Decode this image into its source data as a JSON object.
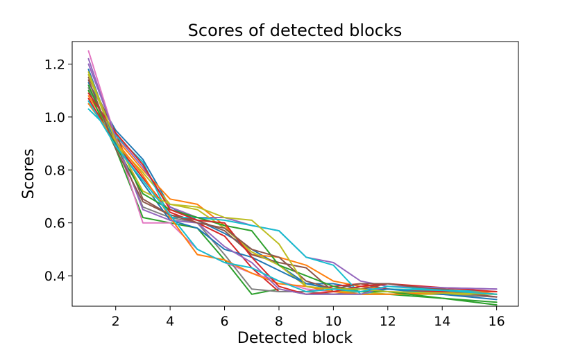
{
  "chart_data": {
    "type": "line",
    "title": "Scores of detected blocks",
    "xlabel": "Detected block",
    "ylabel": "Scores",
    "xlim": [
      0.4,
      16.8
    ],
    "ylim": [
      0.285,
      1.285
    ],
    "xticks": [
      2,
      4,
      6,
      8,
      10,
      12,
      14,
      16
    ],
    "xtick_labels": [
      "2",
      "4",
      "6",
      "8",
      "10",
      "12",
      "14",
      "16"
    ],
    "yticks": [
      0.4,
      0.6,
      0.8,
      1.0,
      1.2
    ],
    "ytick_labels": [
      "0.4",
      "0.6",
      "0.8",
      "1.0",
      "1.2"
    ],
    "grid": false,
    "legend": "none",
    "series": [
      {
        "color": "#1f77b4",
        "x": [
          1,
          2,
          3,
          4,
          5,
          6,
          7,
          8,
          9,
          10,
          11,
          12,
          16
        ],
        "y": [
          1.13,
          0.95,
          0.84,
          0.66,
          0.61,
          0.56,
          0.5,
          0.44,
          0.37,
          0.37,
          0.35,
          0.35,
          0.32
        ]
      },
      {
        "color": "#ff7f0e",
        "x": [
          1,
          2,
          3,
          4,
          5,
          6,
          7,
          8,
          9,
          10,
          11,
          12,
          16
        ],
        "y": [
          1.08,
          0.92,
          0.8,
          0.69,
          0.67,
          0.59,
          0.48,
          0.47,
          0.44,
          0.38,
          0.36,
          0.35,
          0.34
        ]
      },
      {
        "color": "#2ca02c",
        "x": [
          1,
          2,
          3,
          4,
          5,
          6,
          7,
          8,
          9,
          10,
          11,
          12,
          16
        ],
        "y": [
          1.1,
          0.88,
          0.62,
          0.6,
          0.58,
          0.46,
          0.33,
          0.35,
          0.33,
          0.33,
          0.33,
          0.33,
          0.3
        ]
      },
      {
        "color": "#d62728",
        "x": [
          1,
          2,
          3,
          4,
          5,
          6,
          7,
          8,
          9,
          10,
          11,
          12,
          16
        ],
        "y": [
          1.07,
          0.9,
          0.77,
          0.64,
          0.6,
          0.55,
          0.43,
          0.34,
          0.34,
          0.36,
          0.37,
          0.35,
          0.33
        ]
      },
      {
        "color": "#9467bd",
        "x": [
          1,
          2,
          3,
          4,
          5,
          6,
          7,
          8,
          9,
          10,
          11,
          12,
          16
        ],
        "y": [
          1.2,
          0.93,
          0.81,
          0.66,
          0.62,
          0.62,
          0.59,
          0.57,
          0.47,
          0.45,
          0.38,
          0.36,
          0.35
        ]
      },
      {
        "color": "#8c564b",
        "x": [
          1,
          2,
          3,
          4,
          5,
          6,
          7,
          8,
          9,
          10,
          11,
          12,
          16
        ],
        "y": [
          1.15,
          0.94,
          0.69,
          0.63,
          0.61,
          0.57,
          0.48,
          0.45,
          0.43,
          0.34,
          0.35,
          0.37,
          0.33
        ]
      },
      {
        "color": "#e377c2",
        "x": [
          1,
          2,
          3,
          4,
          5,
          6,
          7,
          8,
          9,
          10,
          11,
          12,
          16
        ],
        "y": [
          1.25,
          0.92,
          0.6,
          0.6,
          0.5,
          0.45,
          0.41,
          0.38,
          0.35,
          0.34,
          0.34,
          0.34,
          0.32
        ]
      },
      {
        "color": "#7f7f7f",
        "x": [
          1,
          2,
          3,
          4,
          5,
          6,
          7,
          8,
          9,
          10,
          11,
          12,
          16
        ],
        "y": [
          1.11,
          0.91,
          0.66,
          0.62,
          0.6,
          0.48,
          0.35,
          0.34,
          0.34,
          0.33,
          0.34,
          0.34,
          0.32
        ]
      },
      {
        "color": "#bcbd22",
        "x": [
          1,
          2,
          3,
          4,
          5,
          6,
          7,
          8,
          9,
          10,
          11,
          12,
          16
        ],
        "y": [
          1.16,
          0.9,
          0.79,
          0.67,
          0.65,
          0.58,
          0.49,
          0.44,
          0.36,
          0.34,
          0.34,
          0.33,
          0.33
        ]
      },
      {
        "color": "#17becf",
        "x": [
          1,
          2,
          3,
          4,
          5,
          6,
          7,
          8,
          9,
          10,
          11,
          12,
          16
        ],
        "y": [
          1.03,
          0.93,
          0.83,
          0.62,
          0.62,
          0.61,
          0.59,
          0.57,
          0.47,
          0.44,
          0.33,
          0.35,
          0.34
        ]
      },
      {
        "color": "#1f77b4",
        "x": [
          1,
          2,
          3,
          4,
          5,
          6,
          7,
          8,
          9,
          10,
          11,
          12,
          16
        ],
        "y": [
          1.18,
          0.9,
          0.75,
          0.61,
          0.58,
          0.5,
          0.47,
          0.42,
          0.37,
          0.35,
          0.34,
          0.35,
          0.31
        ]
      },
      {
        "color": "#ff7f0e",
        "x": [
          1,
          2,
          3,
          4,
          5,
          6,
          7,
          8,
          9,
          10,
          11,
          12,
          16
        ],
        "y": [
          1.05,
          0.91,
          0.78,
          0.62,
          0.48,
          0.46,
          0.41,
          0.37,
          0.36,
          0.34,
          0.33,
          0.33,
          0.34
        ]
      },
      {
        "color": "#2ca02c",
        "x": [
          1,
          2,
          3,
          4,
          5,
          6,
          7,
          8,
          9,
          10,
          11,
          12,
          16
        ],
        "y": [
          1.12,
          0.89,
          0.71,
          0.65,
          0.62,
          0.59,
          0.57,
          0.44,
          0.4,
          0.36,
          0.34,
          0.34,
          0.29
        ]
      },
      {
        "color": "#d62728",
        "x": [
          1,
          2,
          3,
          4,
          5,
          6,
          7,
          8,
          9,
          10,
          11,
          12,
          16
        ],
        "y": [
          1.09,
          0.94,
          0.82,
          0.65,
          0.61,
          0.6,
          0.47,
          0.36,
          0.33,
          0.34,
          0.36,
          0.37,
          0.34
        ]
      },
      {
        "color": "#9467bd",
        "x": [
          1,
          2,
          3,
          4,
          5,
          6,
          7,
          8,
          9,
          10,
          11,
          12,
          16
        ],
        "y": [
          1.22,
          0.92,
          0.65,
          0.61,
          0.6,
          0.51,
          0.45,
          0.35,
          0.33,
          0.33,
          0.33,
          0.36,
          0.35
        ]
      },
      {
        "color": "#8c564b",
        "x": [
          1,
          2,
          3,
          4,
          5,
          6,
          7,
          8,
          9,
          10,
          11,
          12,
          16
        ],
        "y": [
          1.14,
          0.88,
          0.68,
          0.63,
          0.6,
          0.58,
          0.5,
          0.47,
          0.38,
          0.35,
          0.37,
          0.37,
          0.32
        ]
      },
      {
        "color": "#bcbd22",
        "x": [
          1,
          2,
          3,
          4,
          5,
          6,
          7,
          8,
          9,
          10,
          11,
          12,
          16
        ],
        "y": [
          1.17,
          0.91,
          0.72,
          0.67,
          0.66,
          0.62,
          0.61,
          0.52,
          0.36,
          0.35,
          0.35,
          0.34,
          0.33
        ]
      },
      {
        "color": "#17becf",
        "x": [
          1,
          2,
          3,
          4,
          5,
          6,
          7,
          8,
          9,
          10,
          11,
          12,
          16
        ],
        "y": [
          1.06,
          0.89,
          0.76,
          0.63,
          0.5,
          0.45,
          0.43,
          0.38,
          0.34,
          0.35,
          0.34,
          0.36,
          0.33
        ]
      }
    ]
  }
}
